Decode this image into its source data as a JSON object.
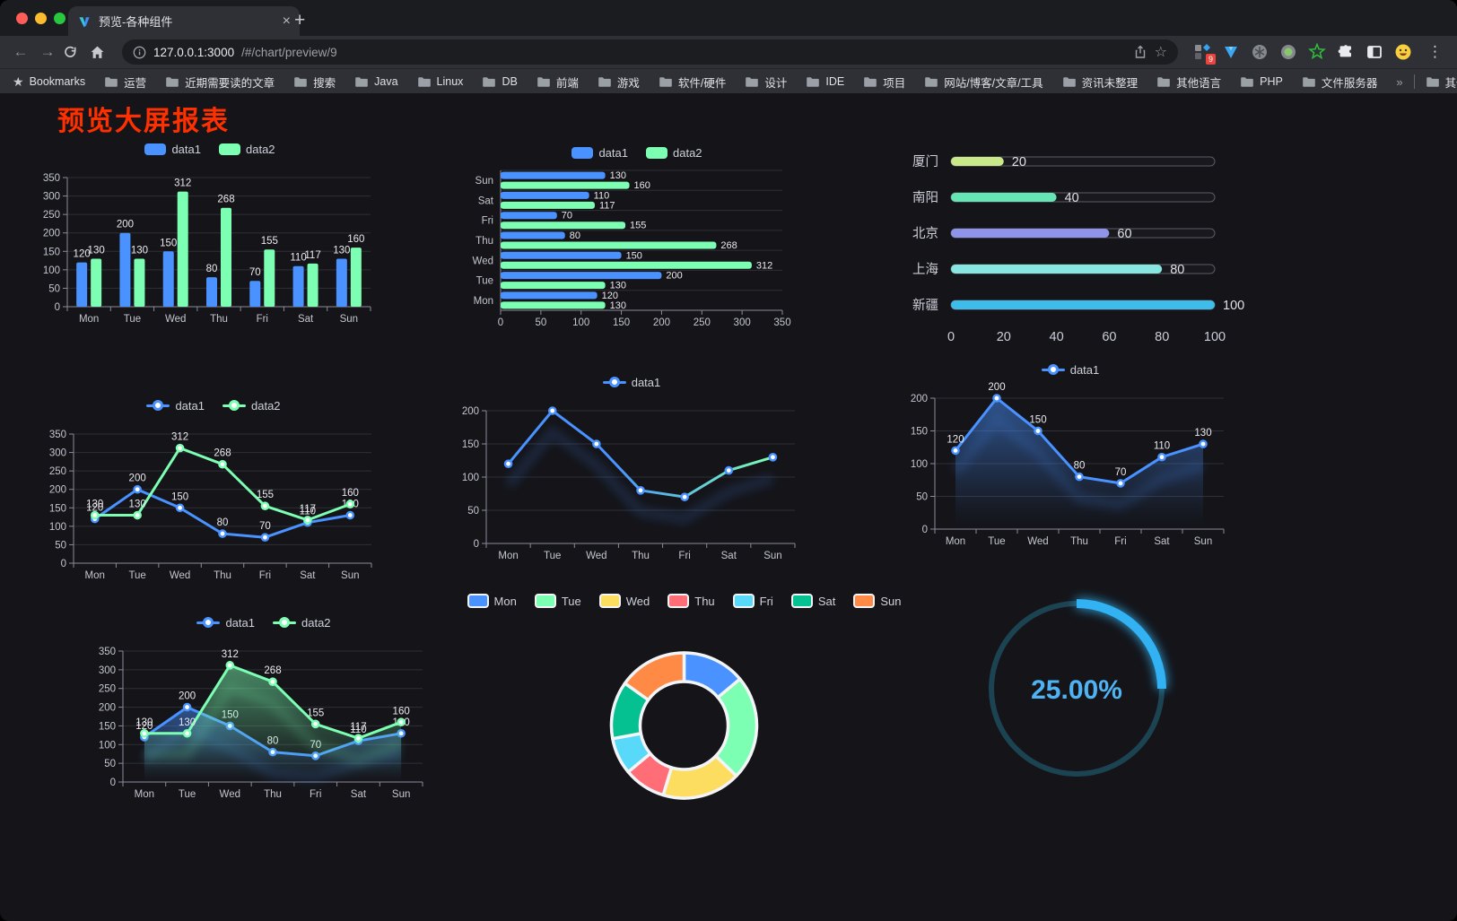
{
  "browser": {
    "tab": {
      "title": "预览-各种组件",
      "close_icon": "×",
      "new_tab_icon": "+"
    },
    "toolbar": {
      "back_icon": "←",
      "forward_icon": "→",
      "url_host": "127.0.0.1:3000",
      "url_path": "/#/chart/preview/9",
      "star_icon": "☆",
      "extension_badge": "9",
      "menu_icon": "⋮"
    },
    "bookmarks_bar": {
      "label": "Bookmarks",
      "folders": [
        "运营",
        "近期需要读的文章",
        "搜索",
        "Java",
        "Linux",
        "DB",
        "前端",
        "游戏",
        "软件/硬件",
        "设计",
        "IDE",
        "项目",
        "网站/博客/文章/工具",
        "资讯未整理",
        "其他语言",
        "PHP",
        "文件服务器"
      ],
      "overflow_icon": "»",
      "other_bookmarks": "其他书签"
    }
  },
  "page": {
    "title": "预览大屏报表",
    "title_color": "#ff3000"
  },
  "chart_data": [
    {
      "id": "grouped-bar",
      "type": "bar",
      "categories": [
        "Mon",
        "Tue",
        "Wed",
        "Thu",
        "Fri",
        "Sat",
        "Sun"
      ],
      "series": [
        {
          "name": "data1",
          "color": "#4992ff",
          "values": [
            120,
            200,
            150,
            80,
            70,
            110,
            130
          ]
        },
        {
          "name": "data2",
          "color": "#7cffb2",
          "values": [
            130,
            130,
            312,
            268,
            155,
            117,
            160
          ]
        }
      ],
      "ylim": [
        0,
        350
      ],
      "yticks": [
        0,
        50,
        100,
        150,
        200,
        250,
        300,
        350
      ],
      "legend_position": "top",
      "grid": true
    },
    {
      "id": "grouped-hbar",
      "type": "hbar",
      "categories": [
        "Mon",
        "Tue",
        "Wed",
        "Thu",
        "Fri",
        "Sat",
        "Sun"
      ],
      "series": [
        {
          "name": "data1",
          "color": "#4992ff",
          "values": [
            120,
            200,
            150,
            80,
            70,
            110,
            130
          ]
        },
        {
          "name": "data2",
          "color": "#7cffb2",
          "values": [
            130,
            130,
            312,
            268,
            155,
            117,
            160
          ]
        }
      ],
      "xlim": [
        0,
        350
      ],
      "xticks": [
        0,
        50,
        100,
        150,
        200,
        250,
        300,
        350
      ],
      "legend_position": "top"
    },
    {
      "id": "city-progress",
      "type": "progress",
      "items": [
        {
          "label": "厦门",
          "value": 20,
          "color": "#c8e88a"
        },
        {
          "label": "南阳",
          "value": 40,
          "color": "#65e4b4"
        },
        {
          "label": "北京",
          "value": 60,
          "color": "#8f93e9"
        },
        {
          "label": "上海",
          "value": 80,
          "color": "#88e6e1"
        },
        {
          "label": "新疆",
          "value": 100,
          "color": "#3fbdea"
        }
      ],
      "xlim": [
        0,
        100
      ],
      "xticks": [
        0,
        20,
        40,
        60,
        80,
        100
      ]
    },
    {
      "id": "two-line",
      "type": "line",
      "categories": [
        "Mon",
        "Tue",
        "Wed",
        "Thu",
        "Fri",
        "Sat",
        "Sun"
      ],
      "series": [
        {
          "name": "data1",
          "color": "#4992ff",
          "values": [
            120,
            200,
            150,
            80,
            70,
            110,
            130
          ]
        },
        {
          "name": "data2",
          "color": "#7cffb2",
          "values": [
            130,
            130,
            312,
            268,
            155,
            117,
            160
          ]
        }
      ],
      "ylim": [
        0,
        350
      ],
      "yticks": [
        0,
        50,
        100,
        150,
        200,
        250,
        300,
        350
      ],
      "show_labels": true,
      "legend_position": "top"
    },
    {
      "id": "gradient-line",
      "type": "line",
      "categories": [
        "Mon",
        "Tue",
        "Wed",
        "Thu",
        "Fri",
        "Sat",
        "Sun"
      ],
      "series": [
        {
          "name": "data1",
          "color": "#4992ff",
          "gradient_to": "#7cffb2",
          "values": [
            120,
            200,
            150,
            80,
            70,
            110,
            130
          ]
        }
      ],
      "ylim": [
        0,
        200
      ],
      "yticks": [
        0,
        50,
        100,
        150,
        200
      ],
      "show_labels": false,
      "shadow": true,
      "legend_position": "top"
    },
    {
      "id": "area-line",
      "type": "line",
      "categories": [
        "Mon",
        "Tue",
        "Wed",
        "Thu",
        "Fri",
        "Sat",
        "Sun"
      ],
      "series": [
        {
          "name": "data1",
          "color": "#4992ff",
          "area": true,
          "values": [
            120,
            200,
            150,
            80,
            70,
            110,
            130
          ]
        }
      ],
      "ylim": [
        0,
        200
      ],
      "yticks": [
        0,
        50,
        100,
        150,
        200
      ],
      "show_labels": true,
      "shadow": true,
      "legend_position": "top"
    },
    {
      "id": "two-area",
      "type": "line",
      "categories": [
        "Mon",
        "Tue",
        "Wed",
        "Thu",
        "Fri",
        "Sat",
        "Sun"
      ],
      "series": [
        {
          "name": "data1",
          "color": "#4992ff",
          "area": true,
          "values": [
            120,
            200,
            150,
            80,
            70,
            110,
            130
          ]
        },
        {
          "name": "data2",
          "color": "#7cffb2",
          "area": true,
          "values": [
            130,
            130,
            312,
            268,
            155,
            117,
            160
          ]
        }
      ],
      "ylim": [
        0,
        350
      ],
      "yticks": [
        0,
        50,
        100,
        150,
        200,
        250,
        300,
        350
      ],
      "show_labels": true,
      "shadow": true,
      "legend_position": "top"
    },
    {
      "id": "week-donut",
      "type": "pie",
      "labels": [
        "Mon",
        "Tue",
        "Wed",
        "Thu",
        "Fri",
        "Sat",
        "Sun"
      ],
      "values": [
        120,
        200,
        150,
        80,
        70,
        110,
        130
      ],
      "colors": [
        "#4992ff",
        "#7cffb2",
        "#fddd60",
        "#ff6e76",
        "#58d9f9",
        "#05c091",
        "#ff8a45"
      ],
      "legend_position": "top"
    },
    {
      "id": "percent-gauge",
      "type": "gauge",
      "value_label": "25.00%",
      "percent": 25,
      "track_color": "#1c4352",
      "bar_color": "#30b2f2",
      "text_color": "#4fb3f3"
    }
  ]
}
